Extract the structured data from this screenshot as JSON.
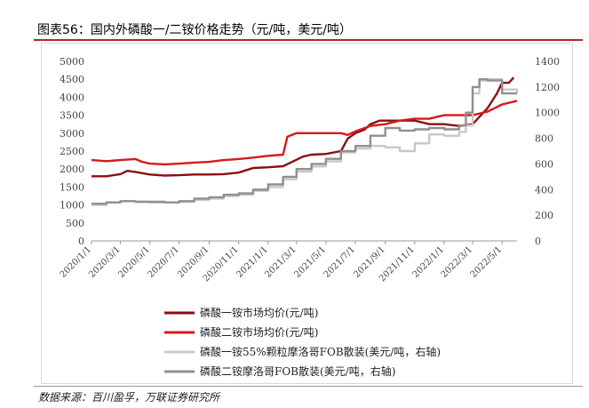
{
  "header": {
    "title": "图表56：国内外磷酸一/二铵价格走势（元/吨，美元/吨）"
  },
  "footer": {
    "source": "数据来源：百川盈孚，万联证券研究所"
  },
  "colors": {
    "accent": "#b3262a",
    "s1": "#8b0e12",
    "s2": "#d7191c",
    "s3": "#c8c8c8",
    "s4": "#8f8f8f"
  },
  "chart_data": {
    "type": "line",
    "title": "",
    "xlabel": "",
    "ylabel": "",
    "x_ticks": [
      "2020/1/1",
      "2020/3/1",
      "2020/5/1",
      "2020/7/1",
      "2020/9/1",
      "2020/11/1",
      "2021/1/1",
      "2021/3/1",
      "2021/5/1",
      "2021/7/1",
      "2021/9/1",
      "2021/11/1",
      "2022/1/1",
      "2022/3/1",
      "2022/5/1"
    ],
    "y_left": {
      "ylim": [
        0,
        5000
      ],
      "ticks": [
        "0",
        "500",
        "1000",
        "1500",
        "2000",
        "2500",
        "3000",
        "3500",
        "4000",
        "4500",
        "5000"
      ]
    },
    "y_right": {
      "ylim": [
        0,
        1400
      ],
      "ticks": [
        "0",
        "200",
        "400",
        "600",
        "800",
        "1000",
        "1200",
        "1400"
      ]
    },
    "x_range": [
      "2020/1/1",
      "2022/6/1"
    ],
    "grid": false,
    "legend_position": "bottom",
    "series": [
      {
        "name": "磷酸一铵市场均价(元/吨)",
        "axis": "left",
        "step": false,
        "points": [
          [
            "2020/1/1",
            1800
          ],
          [
            "2020/2/1",
            1800
          ],
          [
            "2020/3/1",
            1860
          ],
          [
            "2020/3/15",
            1950
          ],
          [
            "2020/4/1",
            1920
          ],
          [
            "2020/5/1",
            1850
          ],
          [
            "2020/6/1",
            1820
          ],
          [
            "2020/7/1",
            1830
          ],
          [
            "2020/8/1",
            1850
          ],
          [
            "2020/9/1",
            1850
          ],
          [
            "2020/10/1",
            1860
          ],
          [
            "2020/11/1",
            1900
          ],
          [
            "2020/12/1",
            2030
          ],
          [
            "2021/1/1",
            2050
          ],
          [
            "2021/2/1",
            2080
          ],
          [
            "2021/2/20",
            2200
          ],
          [
            "2021/3/15",
            2350
          ],
          [
            "2021/4/1",
            2400
          ],
          [
            "2021/5/1",
            2420
          ],
          [
            "2021/6/1",
            2500
          ],
          [
            "2021/6/15",
            2850
          ],
          [
            "2021/7/1",
            3000
          ],
          [
            "2021/7/20",
            3100
          ],
          [
            "2021/8/1",
            3250
          ],
          [
            "2021/8/20",
            3350
          ],
          [
            "2021/9/1",
            3350
          ],
          [
            "2021/10/1",
            3350
          ],
          [
            "2021/11/1",
            3350
          ],
          [
            "2021/12/1",
            3250
          ],
          [
            "2022/1/1",
            3250
          ],
          [
            "2022/2/1",
            3200
          ],
          [
            "2022/3/1",
            3250
          ],
          [
            "2022/4/1",
            3700
          ],
          [
            "2022/4/20",
            4100
          ],
          [
            "2022/5/1",
            4400
          ],
          [
            "2022/5/15",
            4400
          ],
          [
            "2022/5/25",
            4550
          ]
        ]
      },
      {
        "name": "磷酸二铵市场均价(元/吨)",
        "axis": "left",
        "step": false,
        "points": [
          [
            "2020/1/1",
            2250
          ],
          [
            "2020/2/1",
            2220
          ],
          [
            "2020/3/1",
            2250
          ],
          [
            "2020/4/1",
            2280
          ],
          [
            "2020/4/15",
            2200
          ],
          [
            "2020/5/1",
            2150
          ],
          [
            "2020/6/1",
            2130
          ],
          [
            "2020/7/1",
            2150
          ],
          [
            "2020/8/1",
            2180
          ],
          [
            "2020/9/1",
            2200
          ],
          [
            "2020/10/1",
            2250
          ],
          [
            "2020/11/1",
            2280
          ],
          [
            "2020/12/1",
            2320
          ],
          [
            "2021/1/1",
            2370
          ],
          [
            "2021/2/1",
            2400
          ],
          [
            "2021/2/10",
            2900
          ],
          [
            "2021/3/1",
            3000
          ],
          [
            "2021/4/1",
            3000
          ],
          [
            "2021/5/1",
            3000
          ],
          [
            "2021/6/1",
            3000
          ],
          [
            "2021/6/15",
            2950
          ],
          [
            "2021/7/1",
            3050
          ],
          [
            "2021/8/1",
            3200
          ],
          [
            "2021/9/1",
            3250
          ],
          [
            "2021/10/1",
            3350
          ],
          [
            "2021/11/1",
            3400
          ],
          [
            "2021/12/1",
            3400
          ],
          [
            "2022/1/1",
            3500
          ],
          [
            "2022/2/1",
            3500
          ],
          [
            "2022/3/1",
            3500
          ],
          [
            "2022/4/1",
            3600
          ],
          [
            "2022/5/1",
            3800
          ],
          [
            "2022/6/1",
            3900
          ]
        ]
      },
      {
        "name": "磷酸一铵55%颗粒摩洛哥FOB散装(美元/吨，右轴)",
        "axis": "right",
        "step": true,
        "points": [
          [
            "2020/1/1",
            280
          ],
          [
            "2020/2/1",
            300
          ],
          [
            "2020/3/1",
            310
          ],
          [
            "2020/4/1",
            305
          ],
          [
            "2020/5/1",
            300
          ],
          [
            "2020/6/1",
            300
          ],
          [
            "2020/7/1",
            305
          ],
          [
            "2020/8/1",
            320
          ],
          [
            "2020/9/1",
            330
          ],
          [
            "2020/10/1",
            350
          ],
          [
            "2020/11/1",
            360
          ],
          [
            "2020/12/1",
            390
          ],
          [
            "2021/1/1",
            420
          ],
          [
            "2021/2/1",
            480
          ],
          [
            "2021/3/1",
            540
          ],
          [
            "2021/4/1",
            580
          ],
          [
            "2021/5/1",
            620
          ],
          [
            "2021/6/1",
            690
          ],
          [
            "2021/7/1",
            720
          ],
          [
            "2021/8/1",
            740
          ],
          [
            "2021/9/1",
            730
          ],
          [
            "2021/10/1",
            700
          ],
          [
            "2021/11/1",
            760
          ],
          [
            "2021/12/1",
            830
          ],
          [
            "2022/1/1",
            820
          ],
          [
            "2022/2/1",
            850
          ],
          [
            "2022/2/15",
            900
          ],
          [
            "2022/3/1",
            1150
          ],
          [
            "2022/3/15",
            1250
          ],
          [
            "2022/4/1",
            1260
          ],
          [
            "2022/5/1",
            1180
          ],
          [
            "2022/6/1",
            1150
          ]
        ]
      },
      {
        "name": "磷酸二铵摩洛哥FOB散装(美元/吨，右轴)",
        "axis": "right",
        "step": true,
        "points": [
          [
            "2020/1/1",
            290
          ],
          [
            "2020/2/1",
            300
          ],
          [
            "2020/3/1",
            310
          ],
          [
            "2020/4/1",
            305
          ],
          [
            "2020/5/1",
            305
          ],
          [
            "2020/6/1",
            300
          ],
          [
            "2020/7/1",
            310
          ],
          [
            "2020/8/1",
            330
          ],
          [
            "2020/9/1",
            340
          ],
          [
            "2020/10/1",
            360
          ],
          [
            "2020/11/1",
            370
          ],
          [
            "2020/12/1",
            400
          ],
          [
            "2021/1/1",
            440
          ],
          [
            "2021/2/1",
            500
          ],
          [
            "2021/3/1",
            560
          ],
          [
            "2021/4/1",
            600
          ],
          [
            "2021/5/1",
            640
          ],
          [
            "2021/6/1",
            700
          ],
          [
            "2021/7/1",
            740
          ],
          [
            "2021/8/1",
            820
          ],
          [
            "2021/9/1",
            880
          ],
          [
            "2021/10/1",
            860
          ],
          [
            "2021/11/1",
            870
          ],
          [
            "2021/12/1",
            880
          ],
          [
            "2022/1/1",
            870
          ],
          [
            "2022/2/1",
            900
          ],
          [
            "2022/2/15",
            1000
          ],
          [
            "2022/3/1",
            1200
          ],
          [
            "2022/3/15",
            1260
          ],
          [
            "2022/4/1",
            1250
          ],
          [
            "2022/5/1",
            1150
          ],
          [
            "2022/6/1",
            1150
          ]
        ]
      }
    ]
  }
}
